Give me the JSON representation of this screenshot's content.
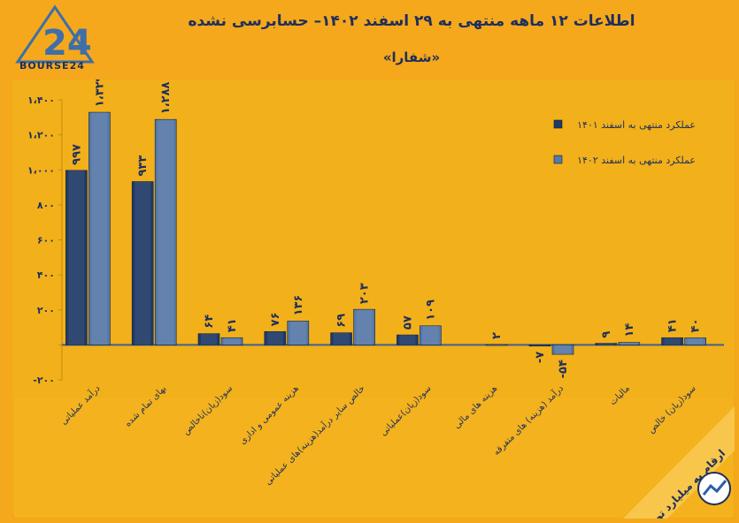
{
  "header": {
    "title": "اطلاعات ۱۲ ماهه منتهی به ۲۹ اسفند ۱۴۰۲– حسابرسی نشده",
    "subtitle": "«شفارا»",
    "logo_text": "BOURSE24",
    "logo_mark": "24"
  },
  "note": "ارقام به میلیارد تومان",
  "colors": {
    "background": "#f5a81c",
    "panel": "#f3b21e",
    "series_1401": "#1f3a66",
    "series_1402": "#5679a8",
    "axis": "#3f5f8f",
    "label": "#1e2f5c"
  },
  "chart_data": {
    "type": "bar",
    "ylim": [
      -200,
      1400
    ],
    "yticks": [
      -200,
      0,
      200,
      400,
      600,
      800,
      1000,
      1200,
      1400
    ],
    "ytick_labels": [
      "-۲۰۰",
      "",
      "۲۰۰",
      "۴۰۰",
      "۶۰۰",
      "۸۰۰",
      "۱،۰۰۰",
      "۱،۲۰۰",
      "۱،۴۰۰"
    ],
    "categories": [
      "درآمد عملیاتی",
      "بهای تمام شده",
      "سود(زیان)ناخالص",
      "هزینه عمومی و اداری",
      "خالص سایر درآمد(هزینه)های عملیاتی",
      "سود(زیان)عملیاتی",
      "هزینه های مالی",
      "درآمد (هزینه) های متفرقه",
      "مالیات",
      "سود(زیان) خالص"
    ],
    "series": [
      {
        "name": "عملکرد منتهی به اسفند ۱۴۰۱",
        "values": [
          997,
          933,
          64,
          76,
          69,
          57,
          0,
          -7,
          9,
          41
        ],
        "labels": [
          "۹۹۷",
          "۹۳۳",
          "۶۴",
          "۷۶",
          "۶۹",
          "۵۷",
          "",
          "-۷",
          "۹",
          "۴۱"
        ]
      },
      {
        "name": "عملکرد منتهی به اسفند ۱۴۰۲",
        "values": [
          1329,
          1288,
          41,
          136,
          203,
          109,
          2,
          -54,
          14,
          40
        ],
        "labels": [
          "۱،۳۲۹",
          "۱،۲۸۸",
          "۴۱",
          "۱۳۶",
          "۲۰۳",
          "۱۰۹",
          "۲",
          "-۵۴",
          "۱۴",
          "۴۰"
        ]
      }
    ]
  }
}
